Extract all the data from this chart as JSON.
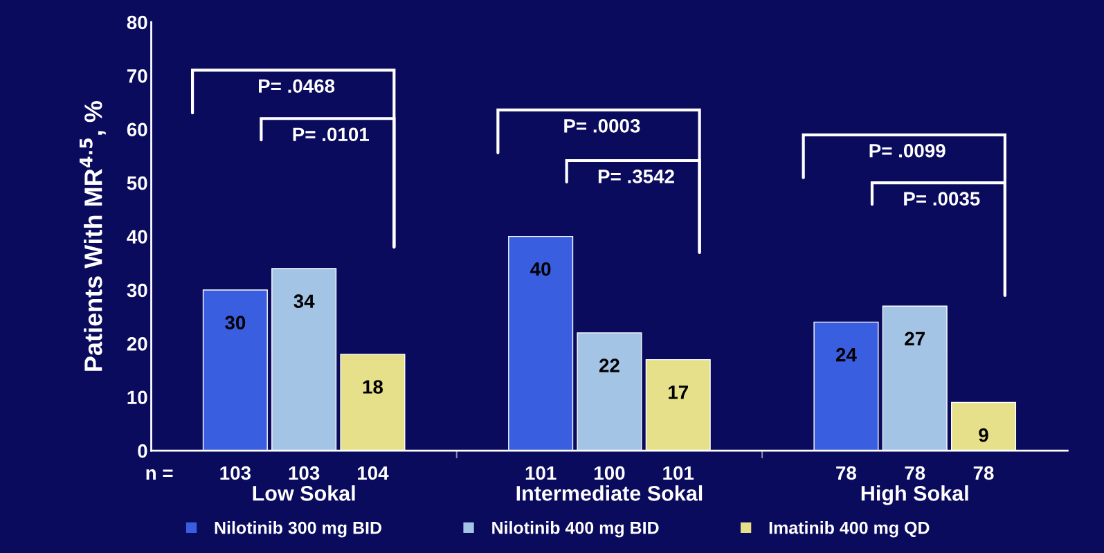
{
  "chart_data": {
    "type": "bar",
    "ylabel": "Patients With MR$^{4.5}$, %",
    "categories": [
      "Low Sokal",
      "Intermediate Sokal",
      "High Sokal"
    ],
    "series": [
      {
        "name": "Nilotinib 300 mg BID",
        "color": "#3a5ee0",
        "values": [
          30,
          40,
          24
        ]
      },
      {
        "name": "Nilotinib 400 mg BID",
        "color": "#a4c4e6",
        "values": [
          34,
          22,
          27
        ]
      },
      {
        "name": "Imatinib 400 mg QD",
        "color": "#e6e08a",
        "values": [
          18,
          17,
          9
        ]
      }
    ],
    "data_labels": true,
    "ylim": [
      0,
      80
    ],
    "yticks": [
      0,
      10,
      20,
      30,
      40,
      50,
      60,
      70,
      80
    ],
    "grid": false,
    "legend": "bottom",
    "annotations": [
      "P= .0468",
      "P= .0101",
      "P= .0003",
      "P= .3542",
      "P= .0099",
      "P= .0035",
      "n =",
      "103",
      "103",
      "104",
      "101",
      "100",
      "101",
      "78",
      "78",
      "78"
    ]
  }
}
